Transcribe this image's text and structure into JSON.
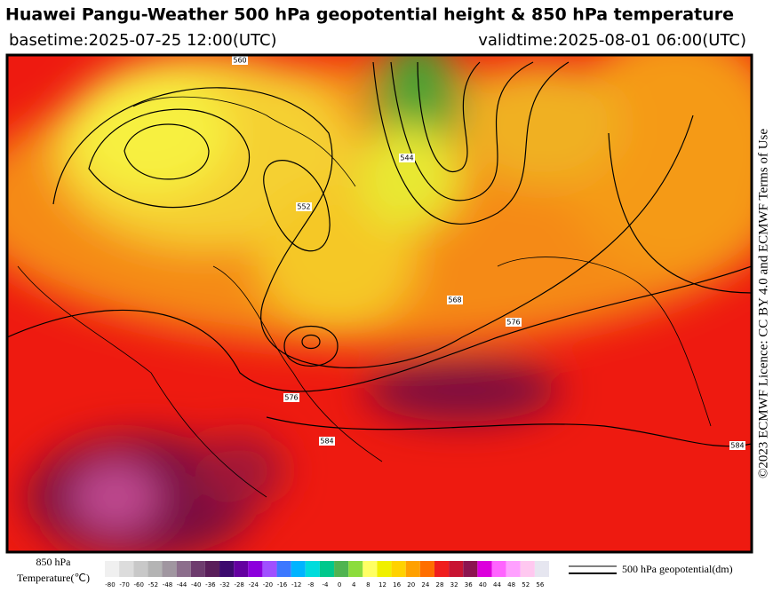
{
  "header": {
    "title": "Huawei Pangu-Weather 500 hPa geopotential height & 850 hPa temperature",
    "basetime": "basetime:2025-07-25 12:00(UTC)",
    "validtime": "validtime:2025-08-01 06:00(UTC)"
  },
  "licence": "©2023 ECMWF Licence: CC BY 4.0 and ECMWF Terms of Use",
  "contour_labels": [
    "584",
    "576",
    "568",
    "560",
    "552",
    "544",
    "584",
    "576"
  ],
  "colorbar": {
    "label": [
      "850 hPa",
      "Temperature(℃)"
    ],
    "ticks": [
      -80,
      -70,
      -60,
      -52,
      -48,
      -44,
      -40,
      -36,
      -32,
      -28,
      -24,
      -20,
      -16,
      -12,
      -8,
      -4,
      0,
      4,
      8,
      12,
      16,
      20,
      24,
      28,
      32,
      36,
      40,
      44,
      48,
      52,
      56
    ],
    "colors": [
      "#f0f0f0",
      "#dcdcdc",
      "#c8c8c8",
      "#b4b4b4",
      "#a096a0",
      "#8c6e8c",
      "#6e3c6e",
      "#5a1e5a",
      "#3c0a6e",
      "#6400a0",
      "#8c00dc",
      "#a050ff",
      "#3c78ff",
      "#00b4ff",
      "#00dcdc",
      "#00c88c",
      "#50b450",
      "#8cdc3c",
      "#ffff64",
      "#f0f000",
      "#ffd200",
      "#ffa000",
      "#ff6e00",
      "#f01e1e",
      "#c81432",
      "#8c1450",
      "#dc00dc",
      "#ff64ff",
      "#ffa0ff",
      "#ffc8f0",
      "#e6e6f0"
    ]
  },
  "legend": "500 hPa geopotential(dm)"
}
